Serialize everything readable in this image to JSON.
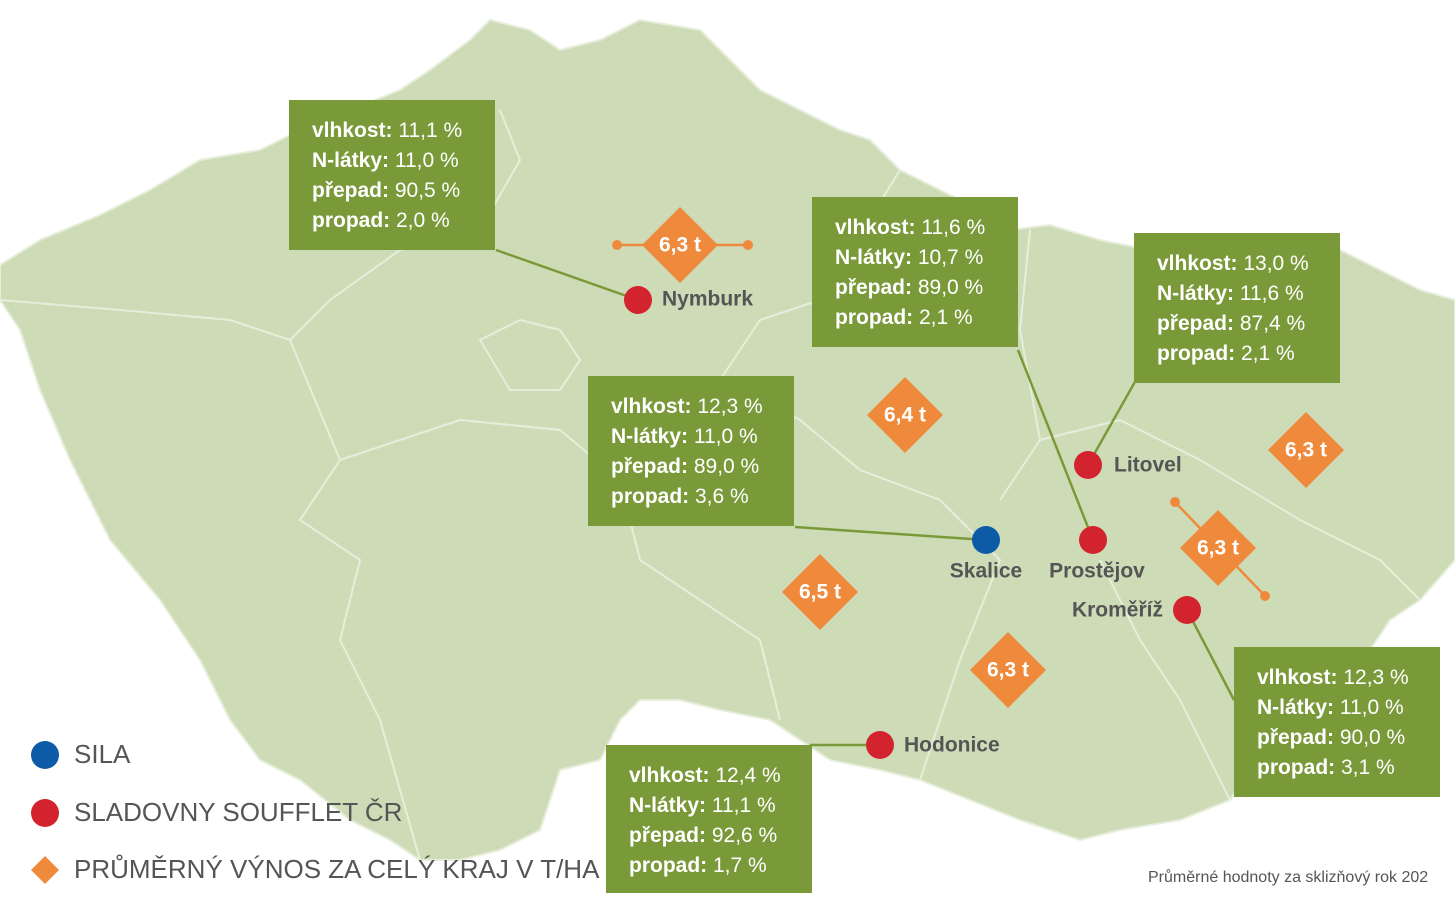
{
  "maltings": [
    {
      "name": "Nymburk",
      "stats": [
        {
          "label": "vlhkost:",
          "value": "11,1 %"
        },
        {
          "label": "N-látky:",
          "value": "11,0 %"
        },
        {
          "label": "přepad:",
          "value": "90,5 %"
        },
        {
          "label": "propad:",
          "value": "2,0 %"
        }
      ]
    },
    {
      "name": "Prostějov",
      "stats": [
        {
          "label": "vlhkost:",
          "value": "11,6 %"
        },
        {
          "label": "N-látky:",
          "value": "10,7 %"
        },
        {
          "label": "přepad:",
          "value": "89,0 %"
        },
        {
          "label": "propad:",
          "value": "2,1 %"
        }
      ]
    },
    {
      "name": "Litovel",
      "stats": [
        {
          "label": "vlhkost:",
          "value": "13,0 %"
        },
        {
          "label": "N-látky:",
          "value": "11,6 %"
        },
        {
          "label": "přepad:",
          "value": "87,4 %"
        },
        {
          "label": "propad:",
          "value": "2,1 %"
        }
      ]
    },
    {
      "name": "Kroměříž",
      "stats": [
        {
          "label": "vlhkost:",
          "value": "12,3 %"
        },
        {
          "label": "N-látky:",
          "value": "11,0 %"
        },
        {
          "label": "přepad:",
          "value": "90,0 %"
        },
        {
          "label": "propad:",
          "value": "3,1 %"
        }
      ]
    },
    {
      "name": "Hodonice",
      "stats": [
        {
          "label": "vlhkost:",
          "value": "12,4 %"
        },
        {
          "label": "N-látky:",
          "value": "11,1 %"
        },
        {
          "label": "přepad:",
          "value": "92,6 %"
        },
        {
          "label": "propad:",
          "value": "1,7 %"
        }
      ]
    }
  ],
  "silos": [
    {
      "name": "Skalice",
      "stats": [
        {
          "label": "vlhkost:",
          "value": "12,3 %"
        },
        {
          "label": "N-látky:",
          "value": "11,0 %"
        },
        {
          "label": "přepad:",
          "value": "89,0 %"
        },
        {
          "label": "propad:",
          "value": "3,6 %"
        }
      ]
    }
  ],
  "yields": [
    "6,3 t",
    "6,4 t",
    "6,3 t",
    "6,3 t",
    "6,5 t",
    "6,3 t"
  ],
  "legend": [
    "SILA",
    "SLADOVNY SOUFFLET ČR",
    "PRŮMĚRNÝ VÝNOS ZA CELÝ KRAJ V T/HA"
  ],
  "footnote": "Průměrné hodnoty za sklizňový rok 202"
}
